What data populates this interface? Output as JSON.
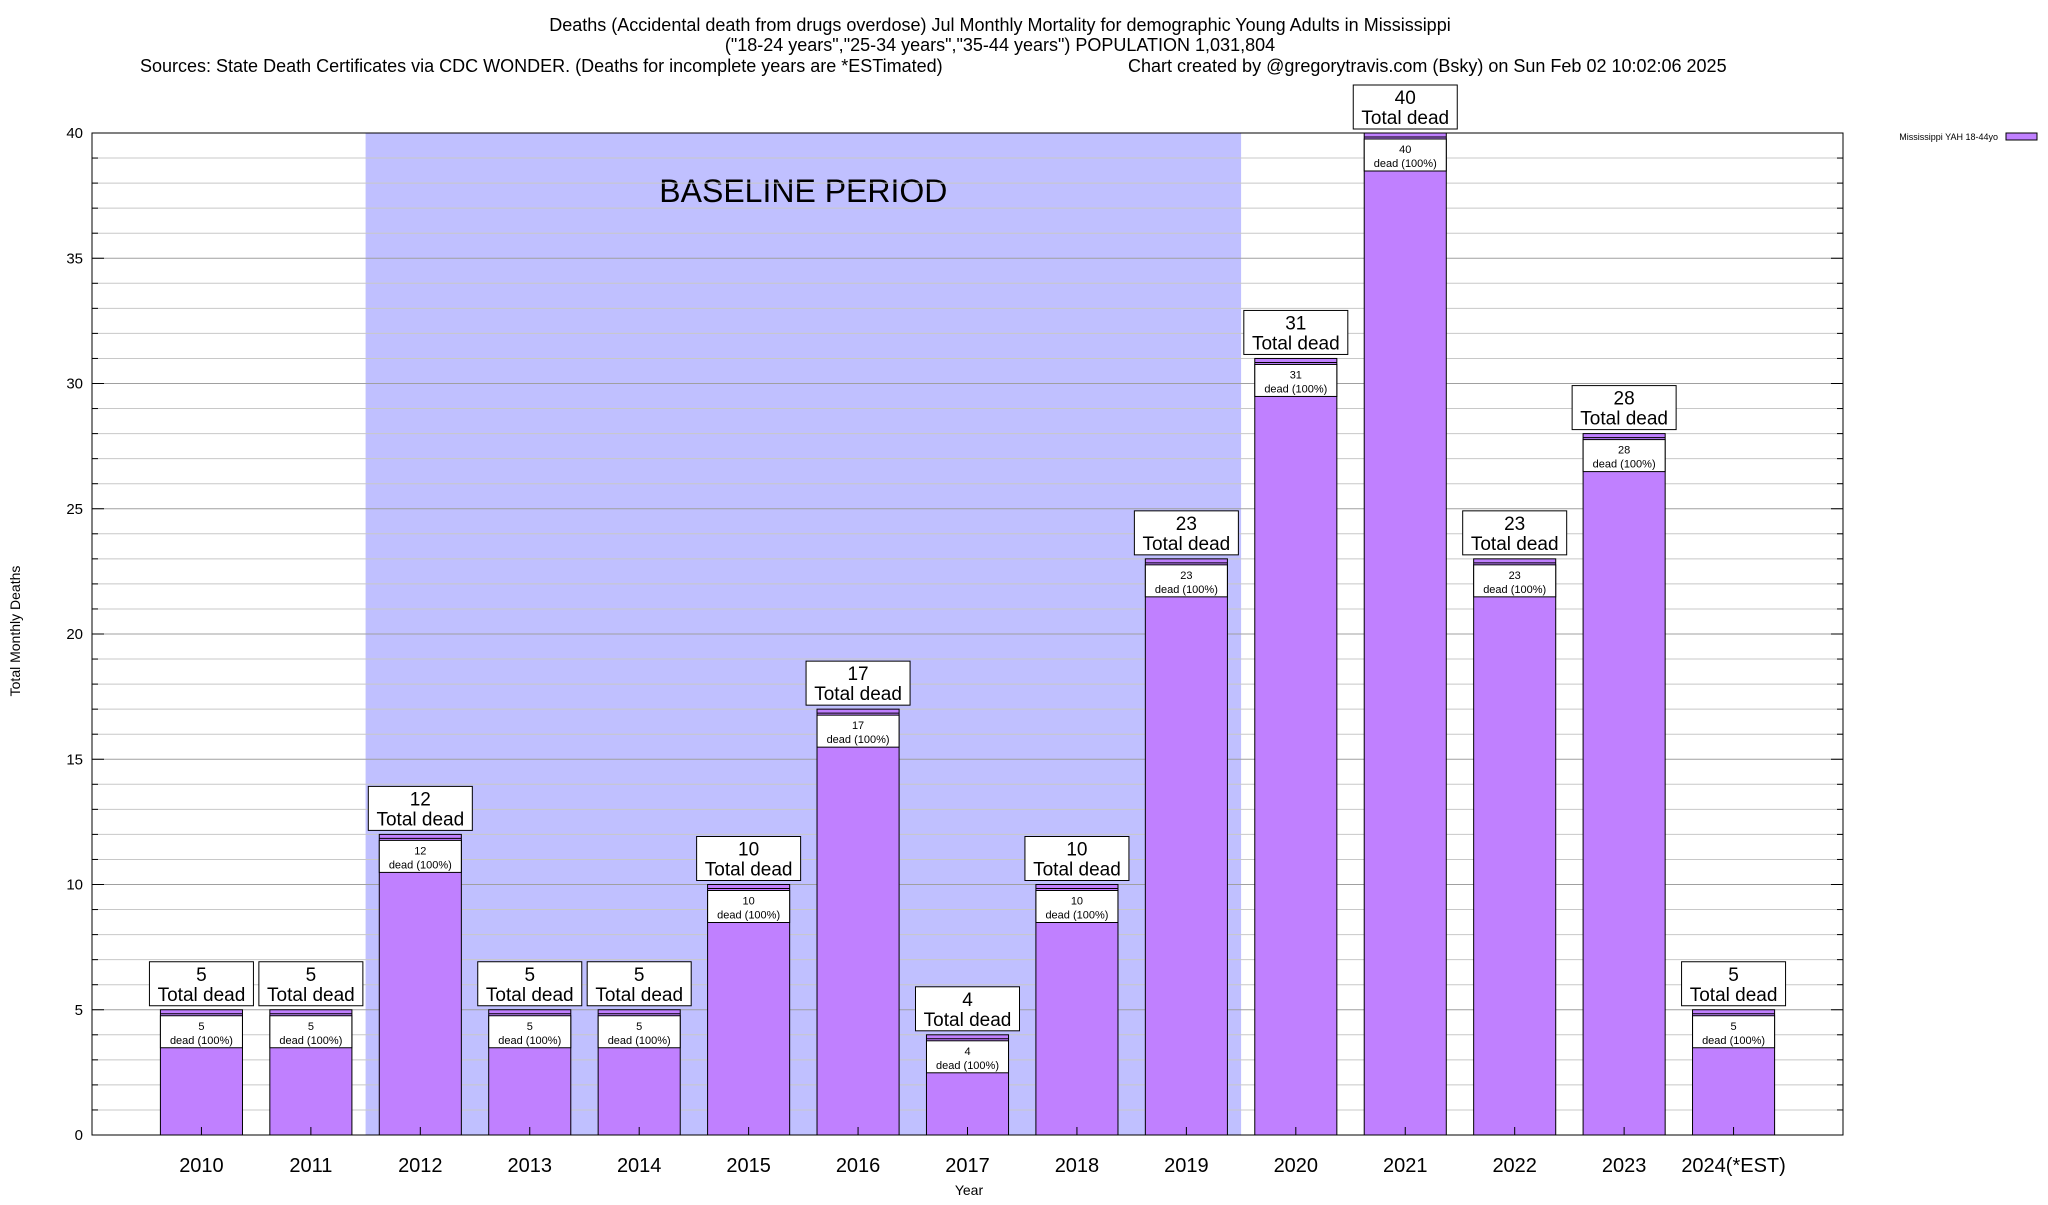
{
  "chart_data": {
    "type": "bar",
    "title_lines": [
      "Deaths (Accidental death from drugs overdose) Jul Monthly Mortality for demographic Young Adults in Mississippi",
      "(\"18-24 years\",\"25-34 years\",\"35-44 years\") POPULATION 1,031,804"
    ],
    "sources": "Sources: State Death Certificates via CDC WONDER. (Deaths for incomplete years are *ESTimated)",
    "credit": "Chart created by @gregorytravis.com (Bsky) on Sun Feb 02 10:02:06 2025",
    "xlabel": "Year",
    "ylabel": "Total Monthly Deaths",
    "ylim": [
      0,
      40
    ],
    "yticks": [
      0,
      5,
      10,
      15,
      20,
      25,
      30,
      35,
      40
    ],
    "minor_tick_step": 1,
    "grid": true,
    "categories": [
      "2010",
      "2011",
      "2012",
      "2013",
      "2014",
      "2015",
      "2016",
      "2017",
      "2018",
      "2019",
      "2020",
      "2021",
      "2022",
      "2023",
      "2024(*EST)"
    ],
    "series": [
      {
        "name": "Mississippi YAH 18-44yo",
        "color": "#c080ff",
        "values": [
          5,
          5,
          12,
          5,
          5,
          10,
          17,
          4,
          10,
          23,
          31,
          40,
          23,
          28,
          5
        ]
      }
    ],
    "total_label_suffix": "Total dead",
    "inner_label_suffix": "dead (100%)",
    "baseline": {
      "label": "BASELINE PERIOD",
      "from": "2012",
      "to": "2019",
      "color": "#c0c0ff"
    },
    "legend_position": "top-right outside"
  }
}
